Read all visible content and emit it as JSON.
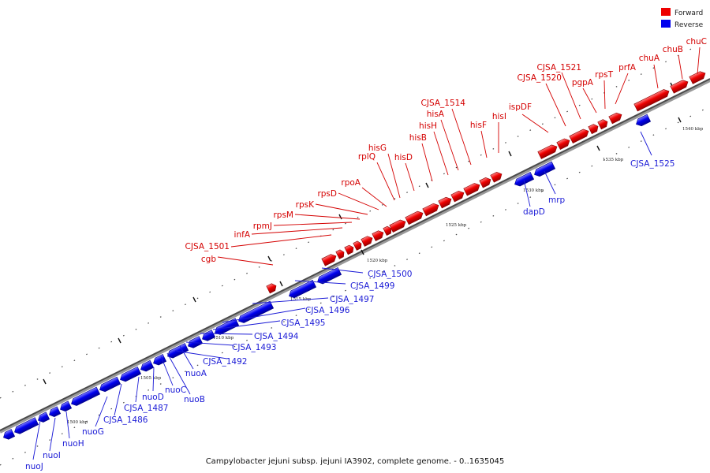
{
  "legend": {
    "forward_label": "Forward",
    "reverse_label": "Reverse",
    "forward_color": "#ee0000",
    "reverse_color": "#0000ee"
  },
  "caption": "Campylobacter jejuni subsp. jejuni IA3902, complete genome. - 0..1635045",
  "scale_labels": [
    "1500 kbp",
    "1505 kbp",
    "1510 kbp",
    "1515 kbp",
    "1520 kbp",
    "1525 kbp",
    "1530 kbp",
    "1535 kbp",
    "1540 kbp"
  ],
  "forward_genes": [
    "cgb",
    "CJSA_1501",
    "infA",
    "rpmJ",
    "rpsM",
    "rpsK",
    "rpsD",
    "rpoA",
    "rplQ",
    "hisG",
    "hisD",
    "hisB",
    "hisH",
    "hisA",
    "CJSA_1514",
    "hisF",
    "hisI",
    "ispDF",
    "CJSA_1520",
    "CJSA_1521",
    "pgpA",
    "rpsT",
    "prfA",
    "chuA",
    "chuB",
    "chuC"
  ],
  "reverse_genes": [
    "nuoJ",
    "nuoI",
    "nuoH",
    "nuoG",
    "CJSA_1486",
    "CJSA_1487",
    "nuoD",
    "nuoC",
    "nuoB",
    "nuoA",
    "CJSA_1492",
    "CJSA_1493",
    "CJSA_1494",
    "CJSA_1495",
    "CJSA_1496",
    "CJSA_1497",
    "CJSA_1499",
    "CJSA_1500",
    "dapD",
    "mrp",
    "CJSA_1525"
  ]
}
